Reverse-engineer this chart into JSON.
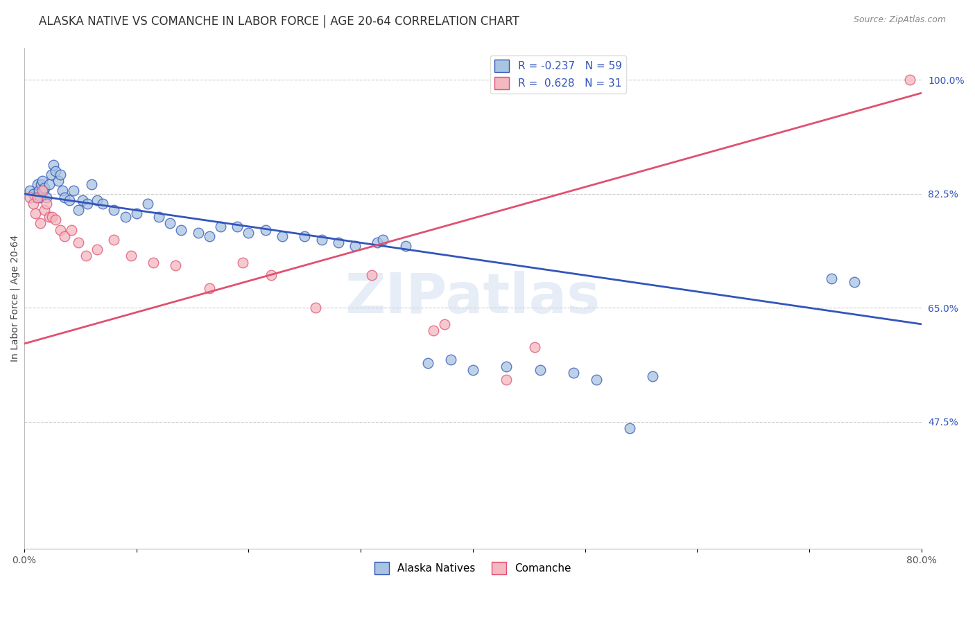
{
  "title": "ALASKA NATIVE VS COMANCHE IN LABOR FORCE | AGE 20-64 CORRELATION CHART",
  "source": "Source: ZipAtlas.com",
  "ylabel": "In Labor Force | Age 20-64",
  "xlim": [
    0.0,
    0.8
  ],
  "ylim": [
    0.28,
    1.05
  ],
  "xticks": [
    0.0,
    0.1,
    0.2,
    0.3,
    0.4,
    0.5,
    0.6,
    0.7,
    0.8
  ],
  "xticklabels": [
    "0.0%",
    "",
    "",
    "",
    "",
    "",
    "",
    "",
    "80.0%"
  ],
  "yticks_right": [
    0.475,
    0.65,
    0.825,
    1.0
  ],
  "yticklabels_right": [
    "47.5%",
    "65.0%",
    "82.5%",
    "100.0%"
  ],
  "alaska_R": -0.237,
  "alaska_N": 59,
  "comanche_R": 0.628,
  "comanche_N": 31,
  "alaska_color": "#A8C4E0",
  "comanche_color": "#F4B8C0",
  "alaska_line_color": "#3355BB",
  "comanche_line_color": "#E05070",
  "background_color": "#FFFFFF",
  "watermark": "ZIPatlas",
  "alaska_x": [
    0.005,
    0.008,
    0.01,
    0.012,
    0.013,
    0.014,
    0.015,
    0.016,
    0.017,
    0.018,
    0.02,
    0.022,
    0.024,
    0.026,
    0.028,
    0.03,
    0.032,
    0.034,
    0.036,
    0.04,
    0.044,
    0.048,
    0.052,
    0.056,
    0.06,
    0.065,
    0.07,
    0.08,
    0.09,
    0.1,
    0.11,
    0.12,
    0.13,
    0.14,
    0.155,
    0.165,
    0.175,
    0.19,
    0.2,
    0.215,
    0.23,
    0.25,
    0.265,
    0.28,
    0.295,
    0.315,
    0.32,
    0.34,
    0.36,
    0.38,
    0.4,
    0.43,
    0.46,
    0.49,
    0.51,
    0.54,
    0.56,
    0.72,
    0.74
  ],
  "alaska_y": [
    0.83,
    0.825,
    0.82,
    0.84,
    0.83,
    0.82,
    0.84,
    0.845,
    0.83,
    0.835,
    0.82,
    0.84,
    0.855,
    0.87,
    0.86,
    0.845,
    0.855,
    0.83,
    0.82,
    0.815,
    0.83,
    0.8,
    0.815,
    0.81,
    0.84,
    0.815,
    0.81,
    0.8,
    0.79,
    0.795,
    0.81,
    0.79,
    0.78,
    0.77,
    0.765,
    0.76,
    0.775,
    0.775,
    0.765,
    0.77,
    0.76,
    0.76,
    0.755,
    0.75,
    0.745,
    0.75,
    0.755,
    0.745,
    0.565,
    0.57,
    0.555,
    0.56,
    0.555,
    0.55,
    0.54,
    0.465,
    0.545,
    0.695,
    0.69
  ],
  "comanche_x": [
    0.005,
    0.008,
    0.01,
    0.012,
    0.014,
    0.016,
    0.018,
    0.02,
    0.022,
    0.025,
    0.028,
    0.032,
    0.036,
    0.042,
    0.048,
    0.055,
    0.065,
    0.08,
    0.095,
    0.115,
    0.135,
    0.165,
    0.195,
    0.22,
    0.26,
    0.31,
    0.365,
    0.43,
    0.455,
    0.375,
    0.79
  ],
  "comanche_y": [
    0.82,
    0.81,
    0.795,
    0.82,
    0.78,
    0.83,
    0.8,
    0.81,
    0.79,
    0.79,
    0.785,
    0.77,
    0.76,
    0.77,
    0.75,
    0.73,
    0.74,
    0.755,
    0.73,
    0.72,
    0.715,
    0.68,
    0.72,
    0.7,
    0.65,
    0.7,
    0.615,
    0.54,
    0.59,
    0.625,
    1.0
  ],
  "alaska_line_x": [
    0.0,
    0.8
  ],
  "alaska_line_y": [
    0.825,
    0.625
  ],
  "comanche_line_x": [
    0.0,
    0.8
  ],
  "comanche_line_y": [
    0.595,
    0.98
  ],
  "title_fontsize": 12,
  "label_fontsize": 10,
  "tick_fontsize": 10
}
